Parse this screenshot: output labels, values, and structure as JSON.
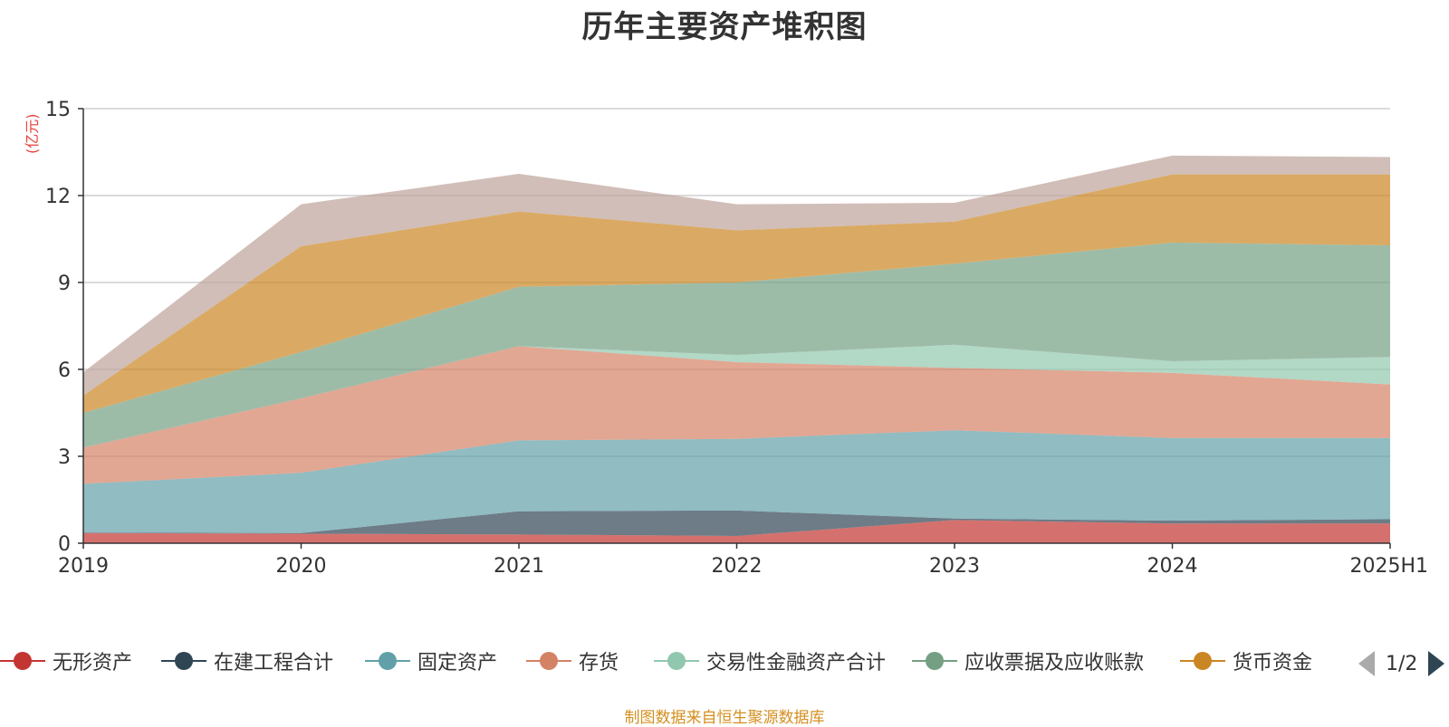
{
  "title": "历年主要资产堆积图",
  "unit_label": "(亿元)",
  "source": "制图数据来自恒生聚源数据库",
  "pager": "1/2",
  "chart_data": {
    "type": "area",
    "stacked": true,
    "title": "历年主要资产堆积图",
    "ylabel": "(亿元)",
    "ylim": [
      0,
      15
    ],
    "yticks": [
      "0",
      "3",
      "6",
      "9",
      "12",
      "15"
    ],
    "categories": [
      "2019",
      "2020",
      "2021",
      "2022",
      "2023",
      "2024",
      "2025H1"
    ],
    "grid": true,
    "legend_position": "bottom",
    "series": [
      {
        "name": "无形资产",
        "color": "#c23531",
        "values": [
          0.35,
          0.33,
          0.3,
          0.25,
          0.8,
          0.68,
          0.68
        ]
      },
      {
        "name": "在建工程合计",
        "color": "#2f4554",
        "values": [
          0.02,
          0.02,
          0.8,
          0.88,
          0.05,
          0.1,
          0.15
        ]
      },
      {
        "name": "固定资产",
        "color": "#61a0a8",
        "values": [
          1.68,
          2.08,
          2.45,
          2.47,
          3.05,
          2.85,
          2.8
        ]
      },
      {
        "name": "存货",
        "color": "#d48265",
        "values": [
          1.25,
          2.57,
          3.25,
          2.65,
          2.15,
          2.25,
          1.85
        ]
      },
      {
        "name": "交易性金融资产合计",
        "color": "#91c7ae",
        "values": [
          0.0,
          0.0,
          0.0,
          0.25,
          0.8,
          0.4,
          0.95
        ]
      },
      {
        "name": "应收票据及应收账款",
        "color": "#749f83",
        "values": [
          1.2,
          1.6,
          2.05,
          2.5,
          2.8,
          4.1,
          3.85
        ]
      },
      {
        "name": "货币资金",
        "color": "#ca8622",
        "values": [
          0.6,
          3.65,
          2.6,
          1.8,
          1.45,
          2.35,
          2.45
        ]
      },
      {
        "name": "",
        "color": "#bda29a",
        "values": [
          0.8,
          1.45,
          1.3,
          0.9,
          0.65,
          0.65,
          0.6
        ]
      }
    ]
  }
}
